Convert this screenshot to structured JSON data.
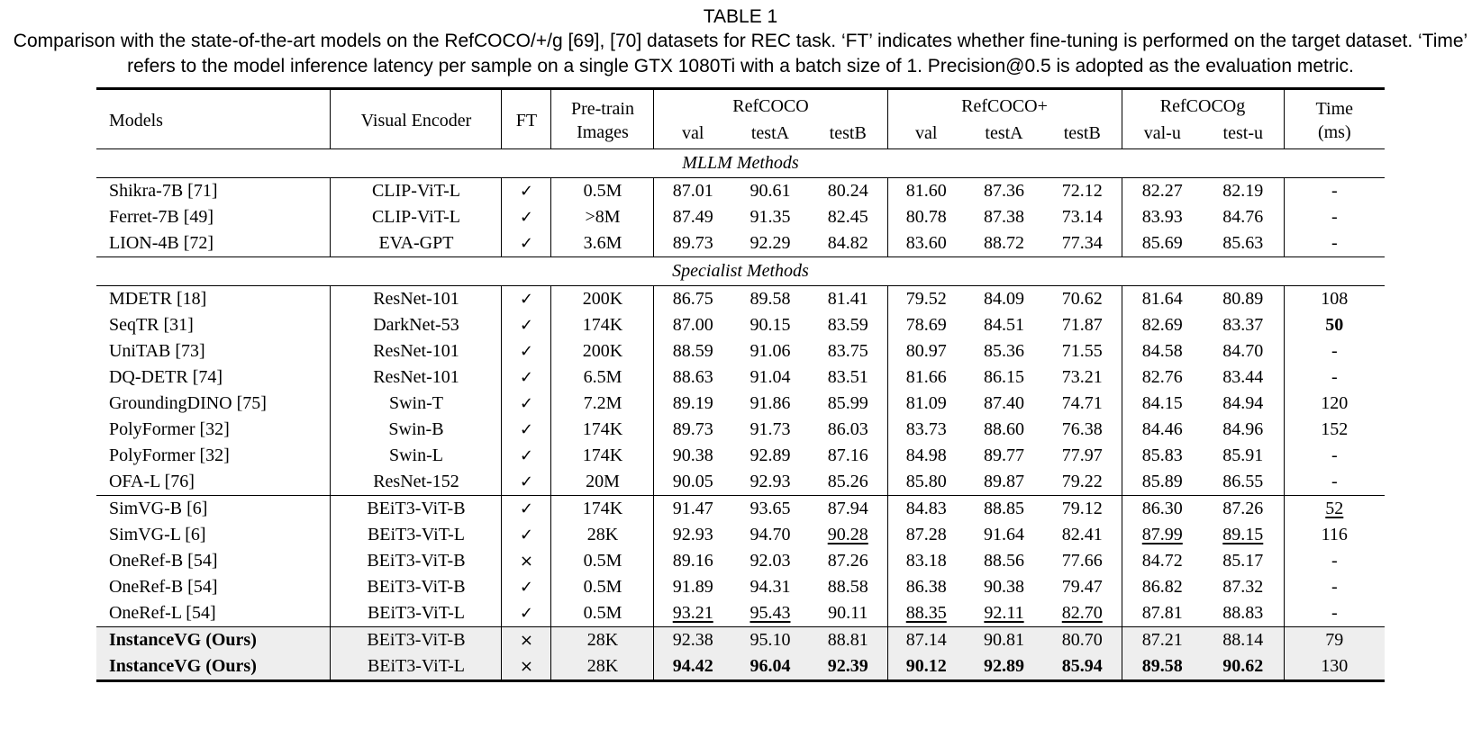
{
  "caption": {
    "label": "TABLE 1",
    "text": "Comparison with the state-of-the-art models on the RefCOCO/+/g [69], [70] datasets for REC task. ‘FT’ indicates whether fine-tuning is performed on the target dataset. ‘Time’ refers to the model inference latency per sample on a single GTX 1080Ti with a batch size of 1. Precision@0.5 is adopted as the evaluation metric."
  },
  "table": {
    "header": {
      "models": "Models",
      "visual_encoder": "Visual Encoder",
      "ft": "FT",
      "pretrain_l1": "Pre-train",
      "pretrain_l2": "Images",
      "groups": [
        {
          "label": "RefCOCO",
          "subs": [
            "val",
            "testA",
            "testB"
          ]
        },
        {
          "label": "RefCOCO+",
          "subs": [
            "val",
            "testA",
            "testB"
          ]
        },
        {
          "label": "RefCOCOg",
          "subs": [
            "val-u",
            "test-u"
          ]
        }
      ],
      "time_l1": "Time",
      "time_l2": "(ms)"
    },
    "sections": [
      {
        "title": "MLLM Methods",
        "groups": [
          [
            {
              "model": "Shikra-7B [71]",
              "encoder": "CLIP-ViT-L",
              "ft": "✓",
              "pretrain": "0.5M",
              "vals": [
                "87.01",
                "90.61",
                "80.24",
                "81.60",
                "87.36",
                "72.12",
                "82.27",
                "82.19",
                "-"
              ]
            },
            {
              "model": "Ferret-7B [49]",
              "encoder": "CLIP-ViT-L",
              "ft": "✓",
              "pretrain": ">8M",
              "vals": [
                "87.49",
                "91.35",
                "82.45",
                "80.78",
                "87.38",
                "73.14",
                "83.93",
                "84.76",
                "-"
              ]
            },
            {
              "model": "LION-4B [72]",
              "encoder": "EVA-GPT",
              "ft": "✓",
              "pretrain": "3.6M",
              "vals": [
                "89.73",
                "92.29",
                "84.82",
                "83.60",
                "88.72",
                "77.34",
                "85.69",
                "85.63",
                "-"
              ]
            }
          ]
        ]
      },
      {
        "title": "Specialist Methods",
        "groups": [
          [
            {
              "model": "MDETR [18]",
              "encoder": "ResNet-101",
              "ft": "✓",
              "pretrain": "200K",
              "vals": [
                "86.75",
                "89.58",
                "81.41",
                "79.52",
                "84.09",
                "70.62",
                "81.64",
                "80.89",
                "108"
              ]
            },
            {
              "model": "SeqTR [31]",
              "encoder": "DarkNet-53",
              "ft": "✓",
              "pretrain": "174K",
              "vals": [
                "87.00",
                "90.15",
                "83.59",
                "78.69",
                "84.51",
                "71.87",
                "82.69",
                "83.37",
                "50"
              ],
              "bold": [
                8
              ]
            },
            {
              "model": "UniTAB [73]",
              "encoder": "ResNet-101",
              "ft": "✓",
              "pretrain": "200K",
              "vals": [
                "88.59",
                "91.06",
                "83.75",
                "80.97",
                "85.36",
                "71.55",
                "84.58",
                "84.70",
                "-"
              ]
            },
            {
              "model": "DQ-DETR [74]",
              "encoder": "ResNet-101",
              "ft": "✓",
              "pretrain": "6.5M",
              "vals": [
                "88.63",
                "91.04",
                "83.51",
                "81.66",
                "86.15",
                "73.21",
                "82.76",
                "83.44",
                "-"
              ]
            },
            {
              "model": "GroundingDINO [75]",
              "encoder": "Swin-T",
              "ft": "✓",
              "pretrain": "7.2M",
              "vals": [
                "89.19",
                "91.86",
                "85.99",
                "81.09",
                "87.40",
                "74.71",
                "84.15",
                "84.94",
                "120"
              ]
            },
            {
              "model": "PolyFormer [32]",
              "encoder": "Swin-B",
              "ft": "✓",
              "pretrain": "174K",
              "vals": [
                "89.73",
                "91.73",
                "86.03",
                "83.73",
                "88.60",
                "76.38",
                "84.46",
                "84.96",
                "152"
              ]
            },
            {
              "model": "PolyFormer [32]",
              "encoder": "Swin-L",
              "ft": "✓",
              "pretrain": "174K",
              "vals": [
                "90.38",
                "92.89",
                "87.16",
                "84.98",
                "89.77",
                "77.97",
                "85.83",
                "85.91",
                "-"
              ]
            },
            {
              "model": "OFA-L [76]",
              "encoder": "ResNet-152",
              "ft": "✓",
              "pretrain": "20M",
              "vals": [
                "90.05",
                "92.93",
                "85.26",
                "85.80",
                "89.87",
                "79.22",
                "85.89",
                "86.55",
                "-"
              ]
            }
          ],
          [
            {
              "model": "SimVG-B [6]",
              "encoder": "BEiT3-ViT-B",
              "ft": "✓",
              "pretrain": "174K",
              "vals": [
                "91.47",
                "93.65",
                "87.94",
                "84.83",
                "88.85",
                "79.12",
                "86.30",
                "87.26",
                "52"
              ],
              "under": [
                8
              ]
            },
            {
              "model": "SimVG-L [6]",
              "encoder": "BEiT3-ViT-L",
              "ft": "✓",
              "pretrain": "28K",
              "vals": [
                "92.93",
                "94.70",
                "90.28",
                "87.28",
                "91.64",
                "82.41",
                "87.99",
                "89.15",
                "116"
              ],
              "under": [
                2,
                6,
                7
              ]
            },
            {
              "model": "OneRef-B [54]",
              "encoder": "BEiT3-ViT-B",
              "ft": "×",
              "pretrain": "0.5M",
              "vals": [
                "89.16",
                "92.03",
                "87.26",
                "83.18",
                "88.56",
                "77.66",
                "84.72",
                "85.17",
                "-"
              ]
            },
            {
              "model": "OneRef-B [54]",
              "encoder": "BEiT3-ViT-B",
              "ft": "✓",
              "pretrain": "0.5M",
              "vals": [
                "91.89",
                "94.31",
                "88.58",
                "86.38",
                "90.38",
                "79.47",
                "86.82",
                "87.32",
                "-"
              ]
            },
            {
              "model": "OneRef-L [54]",
              "encoder": "BEiT3-ViT-L",
              "ft": "✓",
              "pretrain": "0.5M",
              "vals": [
                "93.21",
                "95.43",
                "90.11",
                "88.35",
                "92.11",
                "82.70",
                "87.81",
                "88.83",
                "-"
              ],
              "under": [
                0,
                1,
                3,
                4,
                5
              ]
            }
          ],
          [
            {
              "model": "InstanceVG (Ours)",
              "encoder": "BEiT3-ViT-B",
              "ft": "×",
              "pretrain": "28K",
              "vals": [
                "92.38",
                "95.10",
                "88.81",
                "87.14",
                "90.81",
                "80.70",
                "87.21",
                "88.14",
                "79"
              ],
              "highlight": true,
              "bold_model": true
            },
            {
              "model": "InstanceVG (Ours)",
              "encoder": "BEiT3-ViT-L",
              "ft": "×",
              "pretrain": "28K",
              "vals": [
                "94.42",
                "96.04",
                "92.39",
                "90.12",
                "92.89",
                "85.94",
                "89.58",
                "90.62",
                "130"
              ],
              "highlight": true,
              "bold_model": true,
              "bold": [
                0,
                1,
                2,
                3,
                4,
                5,
                6,
                7
              ]
            }
          ]
        ]
      }
    ]
  }
}
